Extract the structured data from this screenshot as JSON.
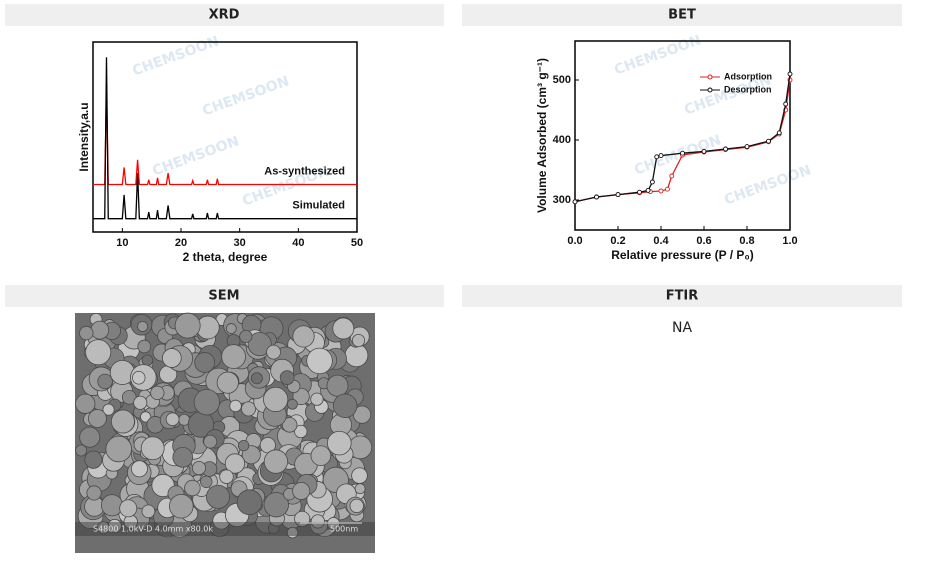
{
  "watermark": "CHEMSOON",
  "xrd": {
    "title": "XRD",
    "chart_data": {
      "type": "line",
      "x_label": "2 theta, degree",
      "y_label": "Intensity,a.u",
      "xlim": [
        5,
        50
      ],
      "xticks": [
        10,
        20,
        30,
        40,
        50
      ],
      "ylim": [
        0,
        100
      ],
      "legend": "inline",
      "x": [
        5,
        7.0,
        7.3,
        7.6,
        10.0,
        10.3,
        10.6,
        12.3,
        12.6,
        12.9,
        14.3,
        14.5,
        14.7,
        15.8,
        16,
        16.2,
        17.5,
        17.8,
        18.1,
        21.8,
        22,
        22.2,
        24.3,
        24.5,
        24.7,
        26,
        26.2,
        26.4,
        50
      ],
      "series": [
        {
          "name": "As-synthesized",
          "color": "#ff0000",
          "values": [
            25,
            25,
            77,
            25,
            25,
            34,
            25,
            25,
            38,
            25,
            25,
            27.5,
            25,
            25,
            28.5,
            25,
            25,
            31,
            25,
            25,
            27,
            25,
            25,
            27.5,
            25,
            25,
            28,
            25,
            25
          ]
        },
        {
          "name": "Simulated",
          "color": "#000000",
          "values": [
            7,
            7,
            92,
            7,
            7,
            19.5,
            7,
            7,
            31,
            7,
            7,
            10.5,
            7,
            7,
            11.5,
            7,
            7,
            14,
            7,
            7,
            9.5,
            7,
            7,
            10,
            7,
            7,
            10,
            7,
            7
          ]
        }
      ]
    }
  },
  "bet": {
    "title": "BET",
    "chart_data": {
      "type": "line",
      "x_label": "Relative pressure (P / P₀)",
      "y_label": "Volume Adsorbed (cm³ g⁻¹)",
      "xlim": [
        0,
        1.0
      ],
      "xticks": [
        {
          "value": 0,
          "label": "0.0"
        },
        {
          "value": 0.2,
          "label": "0.2"
        },
        {
          "value": 0.4,
          "label": "0.4"
        },
        {
          "value": 0.6,
          "label": "0.6"
        },
        {
          "value": 0.8,
          "label": "0.8"
        },
        {
          "value": 1,
          "label": "1.0"
        }
      ],
      "ylim": [
        250,
        565
      ],
      "yticks": [
        300,
        400,
        500
      ],
      "legend": "upper right",
      "markers": true,
      "series": [
        {
          "name": "Adsorption",
          "color": "#e02020",
          "x": [
            0,
            0.1,
            0.2,
            0.3,
            0.35,
            0.4,
            0.43,
            0.45,
            0.5,
            0.6,
            0.7,
            0.8,
            0.9,
            0.95,
            0.98,
            1.0
          ],
          "values": [
            297,
            305,
            309,
            312,
            314,
            315,
            318,
            340,
            375,
            380,
            384,
            388,
            397,
            410,
            450,
            500
          ]
        },
        {
          "name": "Desorption",
          "color": "#111111",
          "x": [
            1.0,
            0.98,
            0.95,
            0.9,
            0.8,
            0.7,
            0.6,
            0.5,
            0.4,
            0.38,
            0.36,
            0.34,
            0.3,
            0.2,
            0.1,
            0.0
          ],
          "values": [
            510,
            460,
            412,
            398,
            389,
            385,
            381,
            378,
            374,
            372,
            330,
            316,
            313,
            309,
            305,
            297
          ]
        }
      ]
    }
  },
  "sem": {
    "title": "SEM",
    "caption": "S4800 1.0kV-D 4.0mm x80.0k",
    "scale": "500nm"
  },
  "ftir": {
    "title": "FTIR",
    "text": "NA"
  }
}
